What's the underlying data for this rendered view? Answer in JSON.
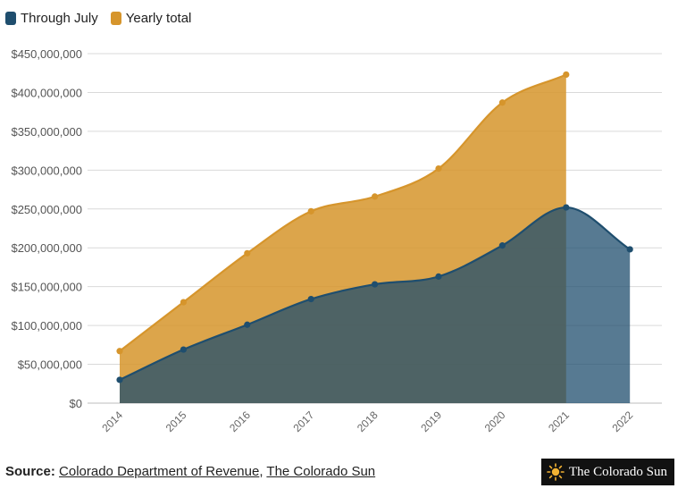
{
  "legend": {
    "items": [
      {
        "label": "Through July",
        "color": "#1f4e6e"
      },
      {
        "label": "Yearly total",
        "color": "#d6952c"
      }
    ]
  },
  "chart_data": {
    "type": "area",
    "categories": [
      "2014",
      "2015",
      "2016",
      "2017",
      "2018",
      "2019",
      "2020",
      "2021",
      "2022"
    ],
    "series": [
      {
        "name": "Yearly total",
        "color": "#d6952c",
        "values": [
          67000000,
          130000000,
          193000000,
          247000000,
          266000000,
          302000000,
          387000000,
          423000000,
          null
        ]
      },
      {
        "name": "Through July",
        "color": "#1f4e6e",
        "values": [
          30000000,
          69000000,
          101000000,
          134000000,
          153000000,
          163000000,
          203000000,
          252000000,
          198000000
        ]
      }
    ],
    "ylim": [
      0,
      450000000
    ],
    "yticks": [
      0,
      50000000,
      100000000,
      150000000,
      200000000,
      250000000,
      300000000,
      350000000,
      400000000,
      450000000
    ],
    "ytick_labels": [
      "$0",
      "$50,000,000",
      "$100,000,000",
      "$150,000,000",
      "$200,000,000",
      "$250,000,000",
      "$300,000,000",
      "$350,000,000",
      "$400,000,000",
      "$450,000,000"
    ],
    "grid": true,
    "legend_position": "top-left",
    "title": "",
    "xlabel": "",
    "ylabel": ""
  },
  "footer": {
    "source_label": "Source:",
    "links": [
      "Colorado Department of Revenue",
      "The Colorado Sun"
    ],
    "separator": ","
  },
  "logo": {
    "text": "The Colorado Sun",
    "icon": "sun-icon"
  }
}
